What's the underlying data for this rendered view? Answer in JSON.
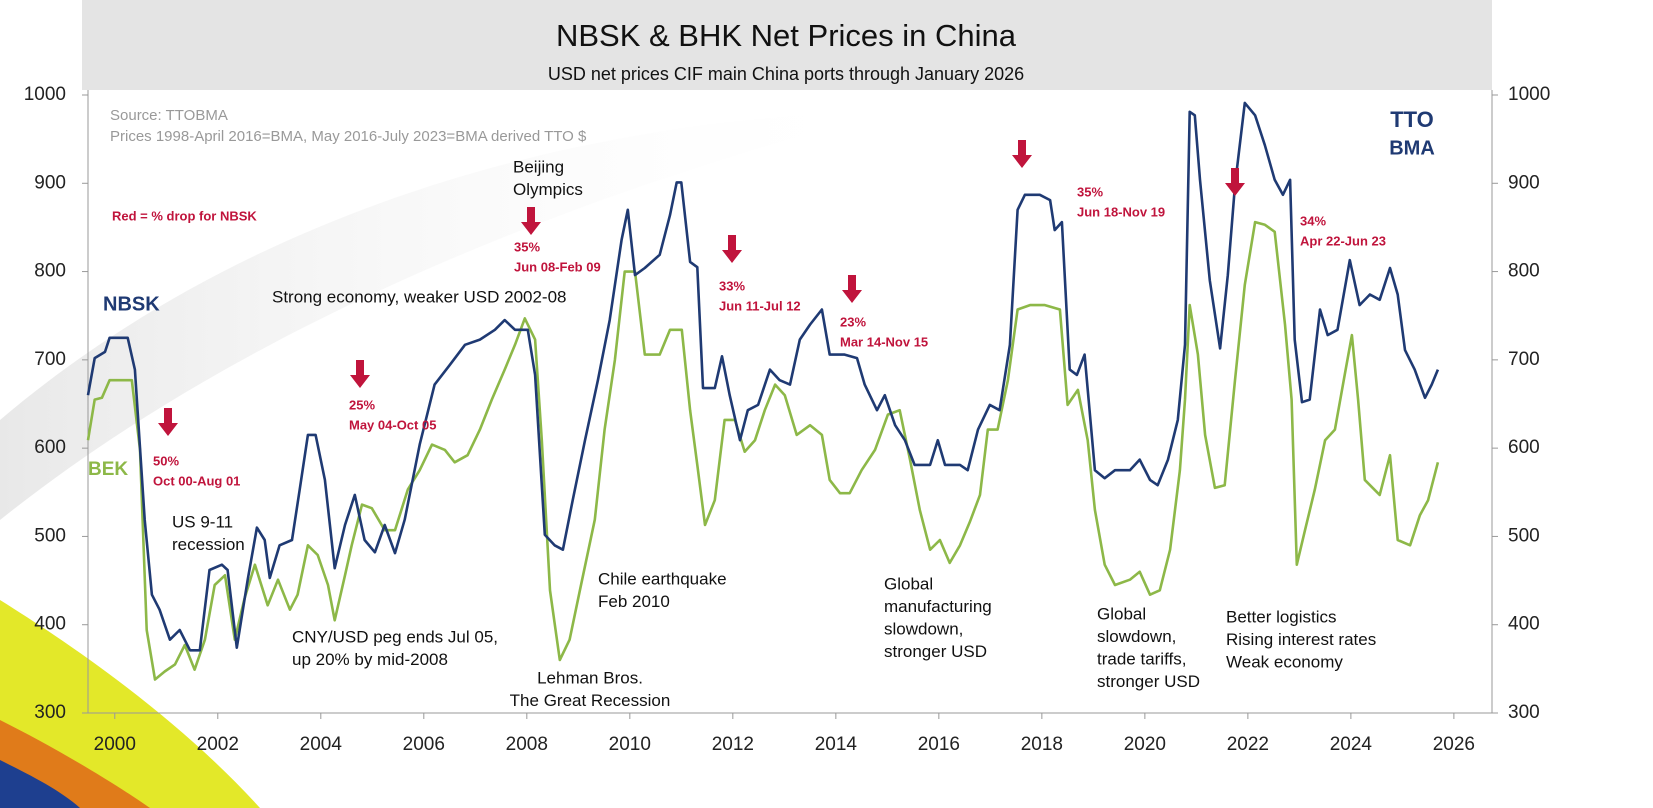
{
  "chart_data": {
    "type": "line",
    "title": "NBSK & BHK Net Prices in China",
    "subtitle": "USD net prices CIF main China ports through January 2026",
    "source": "Source: TTOBMA",
    "note": "Prices 1998-April 2016=BMA, May 2016-July 2023=BMA derived TTO $",
    "key": "Red = % drop for NBSK",
    "logo": [
      "TTO",
      "BMA"
    ],
    "xlim": [
      1999.48,
      2026.74
    ],
    "xticks": [
      2000,
      2002,
      2004,
      2006,
      2008,
      2010,
      2012,
      2014,
      2016,
      2018,
      2020,
      2022,
      2024,
      2026
    ],
    "ylim": [
      300,
      1000
    ],
    "yticks": [
      300,
      400,
      500,
      600,
      700,
      800,
      900,
      1000
    ],
    "y2lim": [
      300,
      1000
    ],
    "y2ticks": [
      300,
      400,
      500,
      600,
      700,
      800,
      900,
      1000
    ],
    "series": [
      {
        "name": "NBSK",
        "color": "#1f3a73",
        "x": [
          1999.48,
          1999.61,
          1999.81,
          1999.9,
          2000.25,
          2000.39,
          2000.58,
          2000.72,
          2000.87,
          2001.07,
          2001.26,
          2001.46,
          2001.65,
          2001.84,
          2002.08,
          2002.19,
          2002.37,
          2002.58,
          2002.76,
          2002.91,
          2003.01,
          2003.2,
          2003.44,
          2003.59,
          2003.75,
          2003.9,
          2004.08,
          2004.27,
          2004.47,
          2004.66,
          2004.85,
          2005.05,
          2005.24,
          2005.44,
          2005.63,
          2005.92,
          2006.21,
          2006.5,
          2006.8,
          2007.09,
          2007.38,
          2007.57,
          2007.77,
          2008.02,
          2008.16,
          2008.35,
          2008.54,
          2008.7,
          2008.89,
          2009.13,
          2009.38,
          2009.61,
          2009.84,
          2009.96,
          2010.1,
          2010.29,
          2010.58,
          2010.78,
          2010.91,
          2011.0,
          2011.17,
          2011.31,
          2011.42,
          2011.65,
          2011.79,
          2011.94,
          2012.14,
          2012.29,
          2012.49,
          2012.72,
          2012.91,
          2013.11,
          2013.3,
          2013.5,
          2013.73,
          2013.88,
          2014.17,
          2014.41,
          2014.56,
          2014.8,
          2014.95,
          2015.15,
          2015.34,
          2015.53,
          2015.83,
          2015.98,
          2016.12,
          2016.41,
          2016.56,
          2016.76,
          2016.99,
          2017.18,
          2017.38,
          2017.53,
          2017.67,
          2017.96,
          2018.16,
          2018.25,
          2018.39,
          2018.54,
          2018.68,
          2018.83,
          2019.03,
          2019.22,
          2019.42,
          2019.71,
          2019.9,
          2020.1,
          2020.25,
          2020.45,
          2020.64,
          2020.78,
          2020.87,
          2020.97,
          2021.07,
          2021.26,
          2021.46,
          2021.61,
          2021.75,
          2021.94,
          2022.14,
          2022.33,
          2022.52,
          2022.68,
          2022.82,
          2022.91,
          2023.05,
          2023.2,
          2023.4,
          2023.55,
          2023.74,
          2023.98,
          2024.17,
          2024.37,
          2024.56,
          2024.76,
          2024.91,
          2025.05,
          2025.24,
          2025.44,
          2025.57,
          2025.69
        ],
        "values": [
          660,
          702,
          709,
          725,
          725,
          689,
          519,
          434,
          417,
          383,
          394,
          371,
          371,
          462,
          468,
          462,
          374,
          451,
          510,
          496,
          453,
          490,
          496,
          553,
          615,
          615,
          564,
          464,
          513,
          547,
          496,
          482,
          513,
          481,
          519,
          604,
          672,
          694,
          717,
          723,
          734,
          745,
          734,
          734,
          683,
          502,
          490,
          485,
          541,
          609,
          677,
          745,
          836,
          870,
          796,
          804,
          819,
          864,
          901,
          901,
          811,
          805,
          668,
          668,
          704,
          660,
          609,
          643,
          649,
          689,
          677,
          672,
          723,
          740,
          757,
          706,
          706,
          702,
          672,
          643,
          660,
          626,
          609,
          581,
          581,
          609,
          581,
          581,
          575,
          621,
          649,
          643,
          717,
          870,
          887,
          887,
          881,
          847,
          856,
          689,
          683,
          706,
          575,
          566,
          575,
          575,
          587,
          564,
          558,
          587,
          632,
          717,
          981,
          977,
          904,
          790,
          713,
          796,
          898,
          991,
          977,
          943,
          904,
          887,
          904,
          723,
          652,
          655,
          757,
          728,
          734,
          813,
          762,
          774,
          768,
          804,
          774,
          711,
          689,
          657,
          672,
          689
        ]
      },
      {
        "name": "BEK",
        "color": "#8db848",
        "x": [
          1999.48,
          1999.61,
          1999.75,
          1999.9,
          2000.33,
          2000.49,
          2000.62,
          2000.78,
          2000.97,
          2001.17,
          2001.36,
          2001.55,
          2001.75,
          2001.94,
          2002.14,
          2002.33,
          2002.52,
          2002.72,
          2002.97,
          2003.17,
          2003.4,
          2003.55,
          2003.75,
          2003.94,
          2004.14,
          2004.27,
          2004.47,
          2004.6,
          2004.8,
          2004.99,
          2005.24,
          2005.44,
          2005.69,
          2005.92,
          2006.16,
          2006.41,
          2006.6,
          2006.85,
          2007.09,
          2007.32,
          2007.57,
          2007.77,
          2007.96,
          2008.16,
          2008.29,
          2008.45,
          2008.64,
          2008.83,
          2009.03,
          2009.32,
          2009.51,
          2009.71,
          2009.9,
          2010.1,
          2010.29,
          2010.58,
          2010.78,
          2011.01,
          2011.17,
          2011.31,
          2011.46,
          2011.65,
          2011.84,
          2012.04,
          2012.23,
          2012.43,
          2012.62,
          2012.82,
          2013.01,
          2013.24,
          2013.5,
          2013.73,
          2013.88,
          2014.08,
          2014.27,
          2014.5,
          2014.76,
          2015.01,
          2015.24,
          2015.44,
          2015.63,
          2015.83,
          2016.02,
          2016.21,
          2016.41,
          2016.6,
          2016.8,
          2016.95,
          2017.14,
          2017.34,
          2017.53,
          2017.77,
          2018.06,
          2018.35,
          2018.5,
          2018.7,
          2018.89,
          2019.03,
          2019.22,
          2019.42,
          2019.71,
          2019.9,
          2020.1,
          2020.29,
          2020.49,
          2020.68,
          2020.78,
          2020.87,
          2021.03,
          2021.17,
          2021.36,
          2021.55,
          2021.75,
          2021.94,
          2022.14,
          2022.33,
          2022.52,
          2022.72,
          2022.85,
          2022.95,
          2023.11,
          2023.3,
          2023.5,
          2023.69,
          2023.88,
          2024.02,
          2024.14,
          2024.27,
          2024.56,
          2024.76,
          2024.91,
          2025.15,
          2025.34,
          2025.5,
          2025.69
        ],
        "values": [
          609,
          655,
          657,
          677,
          677,
          598,
          394,
          338,
          347,
          355,
          377,
          349,
          383,
          445,
          456,
          383,
          430,
          468,
          422,
          451,
          417,
          434,
          490,
          479,
          445,
          405,
          456,
          490,
          536,
          532,
          507,
          507,
          553,
          575,
          604,
          598,
          584,
          592,
          621,
          655,
          689,
          717,
          747,
          723,
          609,
          439,
          360,
          383,
          439,
          519,
          621,
          700,
          800,
          800,
          706,
          706,
          734,
          734,
          643,
          581,
          513,
          541,
          632,
          632,
          596,
          609,
          643,
          672,
          660,
          615,
          626,
          615,
          564,
          549,
          549,
          575,
          598,
          638,
          643,
          587,
          530,
          485,
          496,
          470,
          490,
          516,
          547,
          621,
          621,
          677,
          757,
          762,
          762,
          757,
          649,
          666,
          609,
          530,
          468,
          445,
          451,
          460,
          434,
          439,
          485,
          575,
          655,
          762,
          706,
          615,
          555,
          558,
          677,
          785,
          856,
          853,
          845,
          740,
          655,
          468,
          507,
          553,
          609,
          621,
          683,
          728,
          655,
          564,
          547,
          592,
          496,
          490,
          524,
          541,
          584
        ]
      }
    ],
    "drops": [
      {
        "pct": "50%",
        "period": "Oct 00-Aug 01"
      },
      {
        "pct": "25%",
        "period": "May 04-Oct 05"
      },
      {
        "pct": "35%",
        "period": "Jun 08-Feb 09"
      },
      {
        "pct": "33%",
        "period": "Jun 11-Jul 12"
      },
      {
        "pct": "23%",
        "period": "Mar 14-Nov 15"
      },
      {
        "pct": "35%",
        "period": "Jun 18-Nov 19"
      },
      {
        "pct": "34%",
        "period": "Apr 22-Jun 23"
      }
    ],
    "annotations": [
      {
        "lines": [
          "Beijing",
          "Olympics"
        ]
      },
      {
        "lines": [
          "Strong economy, weaker USD 2002-08"
        ]
      },
      {
        "lines": [
          "US 9-11",
          "recession"
        ]
      },
      {
        "lines": [
          "CNY/USD peg ends Jul 05,",
          "up 20% by mid-2008"
        ]
      },
      {
        "lines": [
          "Lehman Bros.",
          "The Great Recession"
        ]
      },
      {
        "lines": [
          "Chile earthquake",
          "Feb 2010"
        ]
      },
      {
        "lines": [
          "Global",
          "manufacturing",
          "slowdown,",
          "stronger USD"
        ]
      },
      {
        "lines": [
          "Global",
          "slowdown,",
          "trade tariffs,",
          "stronger USD"
        ]
      },
      {
        "lines": [
          "Better logistics",
          "Rising interest rates",
          "Weak economy"
        ]
      }
    ]
  }
}
